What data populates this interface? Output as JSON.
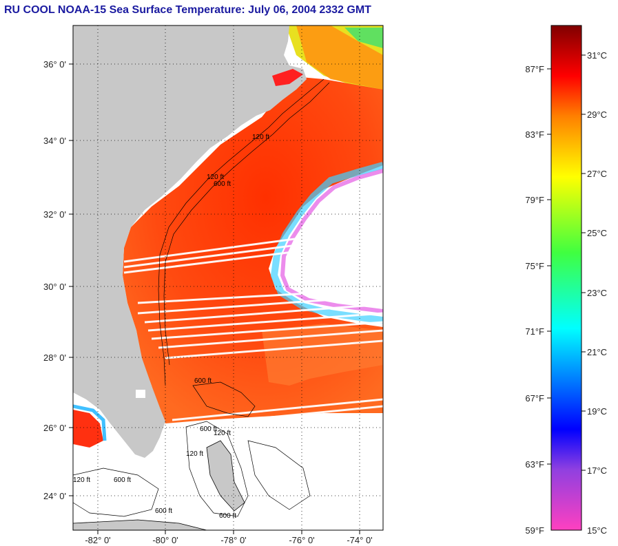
{
  "header": {
    "title": "RU COOL  NOAA-15  Sea Surface Temperature:  July 06, 2004 2332 GMT"
  },
  "map": {
    "lat_labels": [
      "36° 0'",
      "34° 0'",
      "32° 0'",
      "30° 0'",
      "28° 0'",
      "26° 0'",
      "24° 0'"
    ],
    "lon_labels": [
      "-82° 0'",
      "-80° 0'",
      "-78° 0'",
      "-76° 0'",
      "-74° 0'"
    ],
    "isobath_labels": [
      "120 ft",
      "600 ft",
      "120 ft",
      "600 ft",
      "600 ft",
      "120 ft",
      "120 ft",
      "600 ft",
      "600 ft",
      "120 ft",
      "600 ft"
    ],
    "colors": {
      "land": "#c8c8c8",
      "no_data": "#ffffff",
      "frame": "#000000"
    }
  },
  "colorbar": {
    "f_labels": [
      "87°F",
      "83°F",
      "79°F",
      "75°F",
      "71°F",
      "67°F",
      "63°F",
      "59°F"
    ],
    "c_labels": [
      "31°C",
      "29°C",
      "27°C",
      "25°C",
      "23°C",
      "21°C",
      "19°C",
      "17°C",
      "15°C"
    ],
    "min_c": 15,
    "max_c": 32
  }
}
